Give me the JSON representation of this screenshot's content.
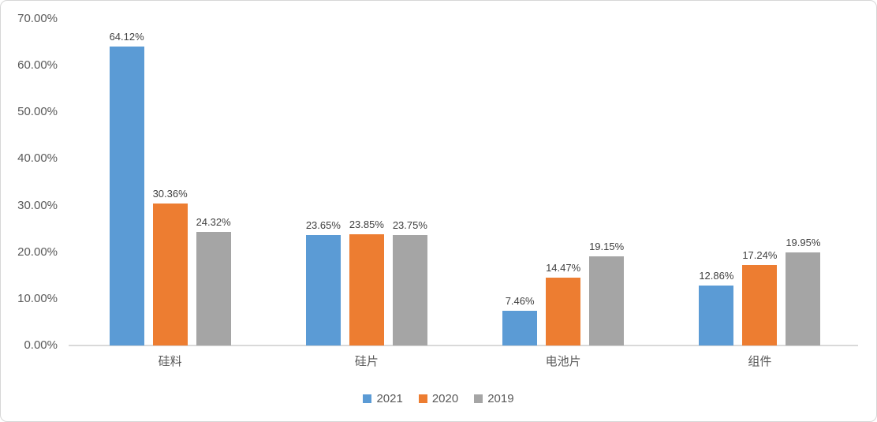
{
  "chart_data": {
    "type": "bar",
    "title": "",
    "xlabel": "",
    "ylabel": "",
    "categories": [
      "硅料",
      "硅片",
      "电池片",
      "组件"
    ],
    "series": [
      {
        "name": "2021",
        "color": "#5B9BD5",
        "values": [
          64.12,
          23.65,
          7.46,
          12.86
        ],
        "labels": [
          "64.12%",
          "23.65%",
          "7.46%",
          "12.86%"
        ]
      },
      {
        "name": "2020",
        "color": "#ED7D31",
        "values": [
          30.36,
          23.85,
          14.47,
          17.24
        ],
        "labels": [
          "30.36%",
          "23.85%",
          "14.47%",
          "17.24%"
        ]
      },
      {
        "name": "2019",
        "color": "#A5A5A5",
        "values": [
          24.32,
          23.75,
          19.15,
          19.95
        ],
        "labels": [
          "24.32%",
          "23.75%",
          "19.15%",
          "19.95%"
        ]
      }
    ],
    "y_ticks": [
      {
        "label": "0.00%",
        "value": 0
      },
      {
        "label": "10.00%",
        "value": 10
      },
      {
        "label": "20.00%",
        "value": 20
      },
      {
        "label": "30.00%",
        "value": 30
      },
      {
        "label": "40.00%",
        "value": 40
      },
      {
        "label": "50.00%",
        "value": 50
      },
      {
        "label": "60.00%",
        "value": 60
      },
      {
        "label": "70.00%",
        "value": 70
      }
    ],
    "ylim": [
      0,
      70
    ],
    "grid": false,
    "legend_position": "bottom",
    "legend": [
      "2021",
      "2020",
      "2019"
    ]
  },
  "colors": {
    "axis_line": "#d9d9d9",
    "axis_text": "#595959",
    "data_label_text": "#404040",
    "chart_border": "#d7d7d7",
    "background": "#ffffff"
  }
}
